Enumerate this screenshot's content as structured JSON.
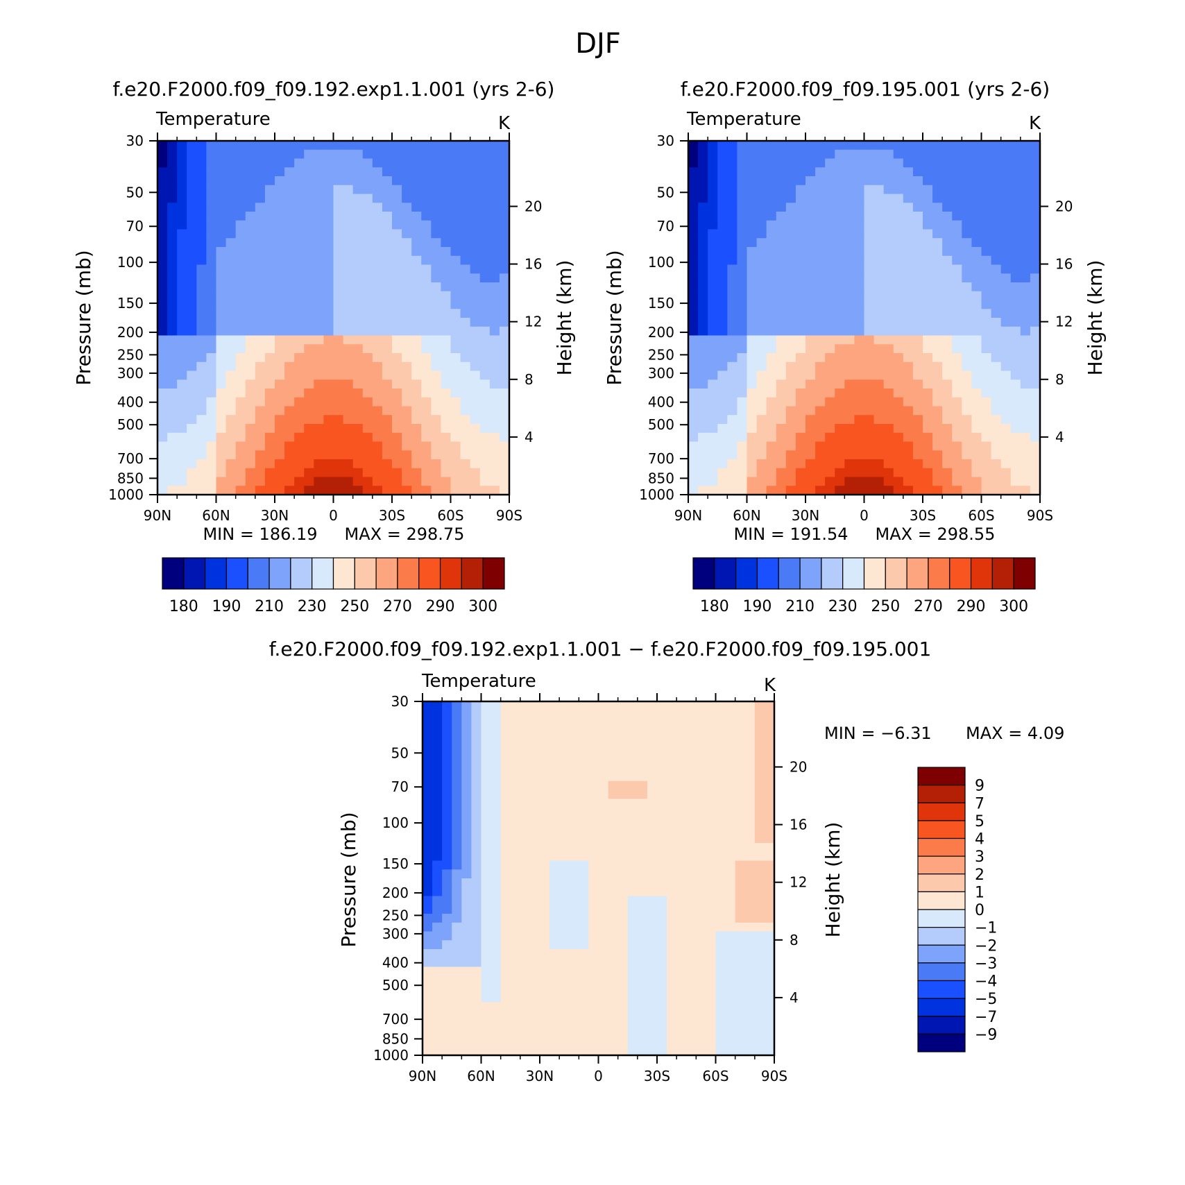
{
  "page_title": "DJF",
  "palette": {
    "temp": [
      "#00007f",
      "#0016b3",
      "#0033e0",
      "#1a50ff",
      "#4a7af5",
      "#7ea3fa",
      "#b3ccfb",
      "#d8e9fc",
      "#fde6d2",
      "#fdc9ac",
      "#fca57e",
      "#fb7b4a",
      "#f85520",
      "#e0340a",
      "#b32005",
      "#7f0000"
    ],
    "diff": [
      "#00007f",
      "#0016b3",
      "#0033e0",
      "#1a50ff",
      "#4a7af5",
      "#7ea3fa",
      "#b3ccfb",
      "#d8e9fc",
      "#fde6d2",
      "#fdc9ac",
      "#fca57e",
      "#fb7b4a",
      "#f85520",
      "#e0340a",
      "#b32005",
      "#7f0000"
    ]
  },
  "chart_data": [
    {
      "id": "top_left",
      "type": "heatmap",
      "title": "f.e20.F2000.f09_f09.192.exp1.1.001 (yrs 2-6)",
      "variable": "Temperature",
      "units": "K",
      "ylabel": "Pressure (mb)",
      "ylabel_right": "Height (km)",
      "x_ticks": [
        "90N",
        "60N",
        "30N",
        "0",
        "30S",
        "60S",
        "90S"
      ],
      "y_ticks": [
        "30",
        "50",
        "70",
        "100",
        "150",
        "200",
        "250",
        "300",
        "400",
        "500",
        "700",
        "850",
        "1000"
      ],
      "y_ticks_right": [
        "20",
        "16",
        "12",
        "8",
        "4"
      ],
      "min_label": "MIN = 186.19",
      "max_label": "MAX = 298.75",
      "min": 186.19,
      "max": 298.75,
      "colorbar_labels": [
        "180",
        "190",
        "210",
        "230",
        "250",
        "270",
        "290",
        "300"
      ],
      "levels": [
        175,
        180,
        185,
        190,
        200,
        210,
        220,
        230,
        240,
        250,
        260,
        270,
        280,
        290,
        295,
        300
      ]
    },
    {
      "id": "top_right",
      "type": "heatmap",
      "title": "f.e20.F2000.f09_f09.195.001 (yrs 2-6)",
      "variable": "Temperature",
      "units": "K",
      "ylabel": "Pressure (mb)",
      "ylabel_right": "Height (km)",
      "x_ticks": [
        "90N",
        "60N",
        "30N",
        "0",
        "30S",
        "60S",
        "90S"
      ],
      "y_ticks": [
        "30",
        "50",
        "70",
        "100",
        "150",
        "200",
        "250",
        "300",
        "400",
        "500",
        "700",
        "850",
        "1000"
      ],
      "y_ticks_right": [
        "20",
        "16",
        "12",
        "8",
        "4"
      ],
      "min_label": "MIN = 191.54",
      "max_label": "MAX = 298.55",
      "min": 191.54,
      "max": 298.55,
      "colorbar_labels": [
        "180",
        "190",
        "210",
        "230",
        "250",
        "270",
        "290",
        "300"
      ],
      "levels": [
        175,
        180,
        185,
        190,
        200,
        210,
        220,
        230,
        240,
        250,
        260,
        270,
        280,
        290,
        295,
        300
      ]
    },
    {
      "id": "bottom_diff",
      "type": "heatmap",
      "title": "f.e20.F2000.f09_f09.192.exp1.1.001 − f.e20.F2000.f09_f09.195.001",
      "variable": "Temperature",
      "units": "K",
      "ylabel": "Pressure (mb)",
      "ylabel_right": "Height (km)",
      "x_ticks": [
        "90N",
        "60N",
        "30N",
        "0",
        "30S",
        "60S",
        "90S"
      ],
      "y_ticks": [
        "30",
        "50",
        "70",
        "100",
        "150",
        "200",
        "250",
        "300",
        "400",
        "500",
        "700",
        "850",
        "1000"
      ],
      "y_ticks_right": [
        "20",
        "16",
        "12",
        "8",
        "4"
      ],
      "min_label": "MIN = −6.31",
      "max_label": "MAX = 4.09",
      "min": -6.31,
      "max": 4.09,
      "colorbar_labels": [
        "9",
        "7",
        "5",
        "4",
        "3",
        "2",
        "1",
        "0",
        "−1",
        "−2",
        "−3",
        "−4",
        "−5",
        "−7",
        "−9"
      ],
      "levels": [
        -9,
        -7,
        -5,
        -4,
        -3,
        -2,
        -1,
        0,
        1,
        2,
        3,
        4,
        5,
        7,
        9
      ]
    }
  ]
}
